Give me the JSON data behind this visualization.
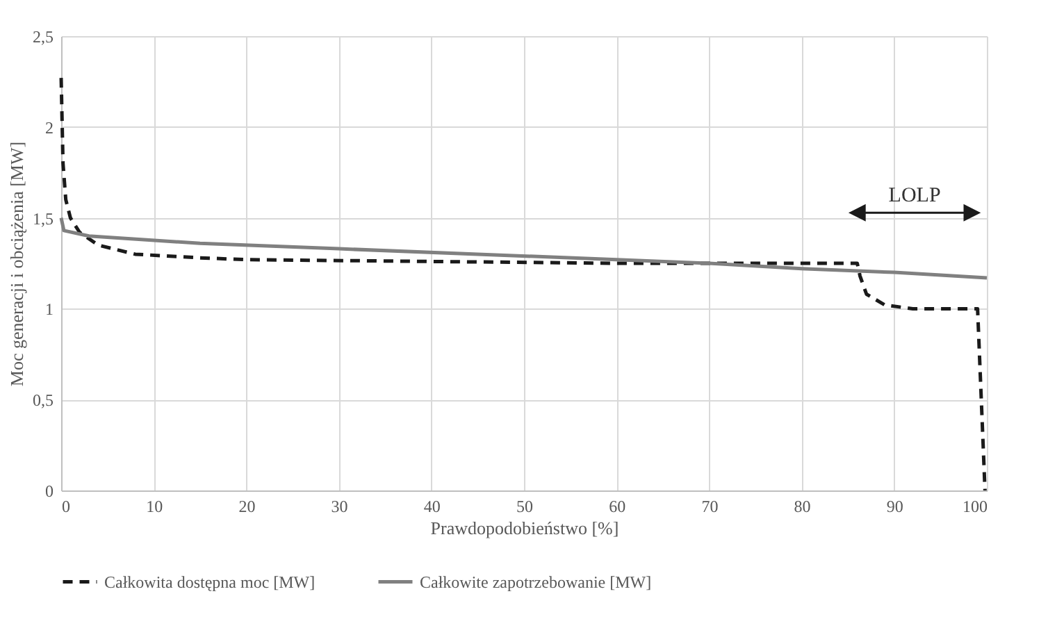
{
  "chart_data": {
    "type": "line",
    "xlabel": "Prawdopodobieństwo [%]",
    "ylabel": "Moc generacji i obciążenia [MW]",
    "xlim": [
      0,
      100
    ],
    "xticks": [
      0,
      10,
      20,
      30,
      40,
      50,
      60,
      70,
      80,
      90,
      100
    ],
    "ylim": [
      0,
      2.5
    ],
    "yticks": [
      0,
      {
        "value": 0.5,
        "label": "0,5"
      },
      1,
      {
        "value": 1.5,
        "label": "1,5"
      },
      2,
      {
        "value": 2.5,
        "label": "2,5"
      }
    ],
    "grid": true,
    "legend": "bottom",
    "series": [
      {
        "name": "Całkowita dostępna moc [MW]",
        "color": "#1a1a1a",
        "line_style": "dashed",
        "x": [
          0,
          0.2,
          0.5,
          1,
          2,
          4,
          8,
          15,
          20,
          40,
          60,
          86,
          86.3,
          87,
          89,
          92,
          99,
          99.4,
          99.8
        ],
        "values": [
          2.27,
          1.8,
          1.6,
          1.5,
          1.42,
          1.35,
          1.3,
          1.28,
          1.27,
          1.26,
          1.25,
          1.25,
          1.18,
          1.08,
          1.02,
          1.0,
          1.0,
          0.5,
          0
        ]
      },
      {
        "name": "Całkowite zapotrzebowanie [MW]",
        "color": "#808080",
        "line_style": "solid",
        "x": [
          0,
          0.3,
          3,
          15,
          30,
          45,
          60,
          70,
          80,
          90,
          100
        ],
        "values": [
          1.5,
          1.43,
          1.4,
          1.36,
          1.33,
          1.3,
          1.27,
          1.25,
          1.22,
          1.2,
          1.17
        ]
      }
    ],
    "annotations": [
      "LOLP"
    ]
  }
}
